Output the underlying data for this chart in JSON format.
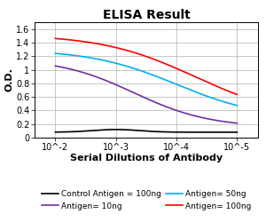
{
  "title": "ELISA Result",
  "ylabel": "O.D.",
  "xlabel": "Serial Dilutions of Antibody",
  "series": [
    {
      "label": "Control Antigen = 100ng",
      "color": "#000000"
    },
    {
      "label": "Antigen= 10ng",
      "color": "#7030A0"
    },
    {
      "label": "Antigen= 50ng",
      "color": "#00B0F0"
    },
    {
      "label": "Antigen= 100ng",
      "color": "#FF0000"
    }
  ],
  "ylim": [
    0,
    1.7
  ],
  "yticks": [
    0,
    0.2,
    0.4,
    0.6,
    0.8,
    1.0,
    1.2,
    1.4,
    1.6
  ],
  "ytick_labels": [
    "0",
    "0.2",
    "0.4",
    "0.6",
    "0.8",
    "1",
    "1.2",
    "1.4",
    "1.6"
  ],
  "xtick_labels": [
    "10^-2",
    "10^-3",
    "10^-4",
    "10^-5"
  ],
  "background_color": "#ffffff",
  "grid_color": "#b0b0b0",
  "title_fontsize": 10,
  "ylabel_fontsize": 8,
  "xlabel_fontsize": 8,
  "tick_fontsize": 7,
  "legend_fontsize": 6.5
}
